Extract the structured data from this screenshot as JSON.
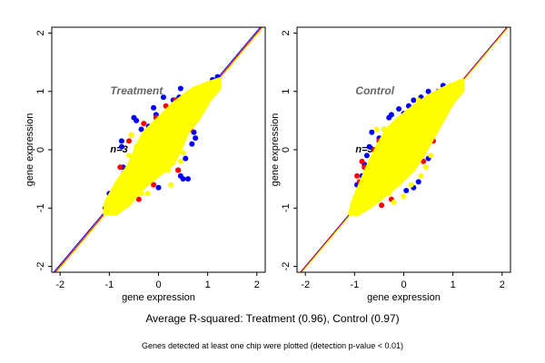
{
  "chart_data": [
    {
      "type": "scatter",
      "title": "Treatment",
      "annotation": "n=3",
      "xlabel": "gene expression",
      "ylabel": "gene expression",
      "xlim": [
        -2.17,
        2.17
      ],
      "ylim": [
        -2.1,
        2.1
      ],
      "xticks": [
        -2,
        -1,
        0,
        1,
        2
      ],
      "yticks": [
        -2,
        -1,
        0,
        1,
        2
      ],
      "grid": false,
      "reference_lines": [
        {
          "color": "#0000ff",
          "slope": 1,
          "intercept": 0.03
        },
        {
          "color": "#ff0000",
          "slope": 1,
          "intercept": 0.0
        },
        {
          "color": "#ffff00",
          "slope": 1,
          "intercept": -0.03
        }
      ],
      "series": [
        {
          "color": "#0000ff",
          "points": [
            [
              -0.5,
              0.55
            ],
            [
              -0.45,
              0.5
            ],
            [
              -0.1,
              0.72
            ],
            [
              -0.05,
              0.6
            ],
            [
              0.1,
              0.9
            ],
            [
              0.45,
              1.05
            ],
            [
              0.42,
              0.9
            ],
            [
              0.3,
              0.85
            ],
            [
              -0.2,
              0.4
            ],
            [
              -0.35,
              0.35
            ],
            [
              -0.75,
              0.15
            ],
            [
              -0.75,
              0.05
            ],
            [
              -0.72,
              -0.3
            ],
            [
              -0.7,
              -0.4
            ],
            [
              -0.8,
              -0.6
            ],
            [
              -1.0,
              -0.75
            ],
            [
              0.45,
              -0.45
            ],
            [
              0.5,
              -0.5
            ],
            [
              0.6,
              -0.5
            ],
            [
              0.4,
              -0.35
            ],
            [
              0.55,
              -0.15
            ],
            [
              0.75,
              0.2
            ],
            [
              0.72,
              0.3
            ],
            [
              0.68,
              0.1
            ],
            [
              0.0,
              -0.65
            ],
            [
              1.1,
              1.2
            ],
            [
              1.2,
              1.25
            ]
          ]
        },
        {
          "color": "#ff0000",
          "points": [
            [
              -0.4,
              -0.85
            ],
            [
              -0.8,
              -0.55
            ],
            [
              -0.78,
              -0.3
            ],
            [
              0.35,
              0.85
            ],
            [
              0.15,
              0.75
            ],
            [
              -0.05,
              0.55
            ],
            [
              -0.6,
              0.15
            ],
            [
              -0.55,
              0.25
            ],
            [
              -1.05,
              -0.95
            ],
            [
              -1.08,
              -1.0
            ],
            [
              0.4,
              -0.35
            ],
            [
              0.65,
              0.35
            ],
            [
              -0.1,
              -0.6
            ],
            [
              0.95,
              1.1
            ],
            [
              -0.3,
              0.45
            ]
          ]
        },
        {
          "color": "#ffff00",
          "points": [
            [
              -0.55,
              0.25
            ],
            [
              -0.35,
              -0.75
            ],
            [
              -0.22,
              -0.75
            ],
            [
              0.25,
              -0.6
            ],
            [
              0.5,
              -0.05
            ],
            [
              0.3,
              0.65
            ],
            [
              -0.45,
              0.05
            ],
            [
              0.45,
              -0.2
            ],
            [
              0.2,
              -0.35
            ],
            [
              -0.6,
              -0.1
            ]
          ],
          "core": [
            [
              -1.1,
              -1.1
            ],
            [
              -1.08,
              -0.9
            ],
            [
              -0.85,
              -0.55
            ],
            [
              -0.6,
              -0.25
            ],
            [
              -0.45,
              0.05
            ],
            [
              -0.3,
              0.3
            ],
            [
              0.0,
              0.55
            ],
            [
              0.3,
              0.8
            ],
            [
              0.7,
              1.05
            ],
            [
              1.0,
              1.15
            ],
            [
              1.25,
              1.22
            ],
            [
              1.25,
              1.05
            ],
            [
              1.05,
              0.85
            ],
            [
              0.8,
              0.5
            ],
            [
              0.6,
              0.3
            ],
            [
              0.45,
              0.0
            ],
            [
              0.3,
              -0.25
            ],
            [
              0.0,
              -0.45
            ],
            [
              -0.3,
              -0.65
            ],
            [
              -0.6,
              -0.95
            ],
            [
              -0.85,
              -1.1
            ]
          ]
        }
      ]
    },
    {
      "type": "scatter",
      "title": "Control",
      "annotation": "n=3",
      "xlabel": "gene expression",
      "ylabel": "gene expression",
      "xlim": [
        -2.17,
        2.17
      ],
      "ylim": [
        -2.1,
        2.1
      ],
      "xticks": [
        -2,
        -1,
        0,
        1,
        2
      ],
      "yticks": [
        -2,
        -1,
        0,
        1,
        2
      ],
      "grid": false,
      "reference_lines": [
        {
          "color": "#0000ff",
          "slope": 1,
          "intercept": 0.0
        },
        {
          "color": "#ff0000",
          "slope": 1,
          "intercept": -0.01
        },
        {
          "color": "#ffff00",
          "slope": 1,
          "intercept": -0.03
        }
      ],
      "series": [
        {
          "color": "#0000ff",
          "points": [
            [
              -0.3,
              0.55
            ],
            [
              -0.25,
              0.6
            ],
            [
              -0.1,
              0.7
            ],
            [
              0.0,
              0.62
            ],
            [
              0.1,
              0.75
            ],
            [
              0.2,
              0.85
            ],
            [
              0.35,
              0.9
            ],
            [
              0.5,
              1.0
            ],
            [
              -0.4,
              0.35
            ],
            [
              -0.5,
              0.2
            ],
            [
              -0.65,
              0.3
            ],
            [
              -0.7,
              0.05
            ],
            [
              -0.75,
              -0.1
            ],
            [
              -0.8,
              -0.25
            ],
            [
              -0.85,
              -0.45
            ],
            [
              -0.95,
              -0.6
            ],
            [
              -0.1,
              -0.45
            ],
            [
              0.2,
              -0.65
            ],
            [
              0.3,
              -0.55
            ],
            [
              0.05,
              -0.7
            ],
            [
              0.5,
              -0.15
            ],
            [
              -0.2,
              -0.55
            ],
            [
              0.8,
              1.1
            ],
            [
              0.7,
              1.0
            ]
          ]
        },
        {
          "color": "#ff0000",
          "points": [
            [
              -0.8,
              -0.3
            ],
            [
              -0.95,
              -0.45
            ],
            [
              -0.9,
              -0.55
            ],
            [
              -0.45,
              -0.95
            ],
            [
              -0.25,
              -0.85
            ],
            [
              0.05,
              0.55
            ],
            [
              0.25,
              0.75
            ],
            [
              -0.5,
              0.15
            ],
            [
              -0.6,
              0.0
            ],
            [
              0.4,
              -0.2
            ],
            [
              0.6,
              0.15
            ],
            [
              -0.15,
              0.45
            ],
            [
              -0.85,
              -0.2
            ]
          ]
        },
        {
          "color": "#ffff00",
          "points": [
            [
              -0.2,
              -0.9
            ],
            [
              -0.3,
              -0.75
            ],
            [
              0.0,
              -0.8
            ],
            [
              0.15,
              -0.6
            ],
            [
              0.35,
              -0.45
            ],
            [
              0.55,
              -0.1
            ],
            [
              -0.4,
              0.35
            ],
            [
              -0.55,
              0.35
            ],
            [
              0.3,
              0.85
            ],
            [
              0.45,
              -0.3
            ]
          ],
          "core": [
            [
              -1.1,
              -1.1
            ],
            [
              -1.05,
              -0.9
            ],
            [
              -0.9,
              -0.6
            ],
            [
              -0.75,
              -0.3
            ],
            [
              -0.55,
              0.05
            ],
            [
              -0.35,
              0.35
            ],
            [
              -0.1,
              0.55
            ],
            [
              0.2,
              0.75
            ],
            [
              0.55,
              0.95
            ],
            [
              0.9,
              1.1
            ],
            [
              1.2,
              1.2
            ],
            [
              1.2,
              1.0
            ],
            [
              1.0,
              0.8
            ],
            [
              0.8,
              0.5
            ],
            [
              0.6,
              0.2
            ],
            [
              0.4,
              -0.1
            ],
            [
              0.2,
              -0.35
            ],
            [
              -0.1,
              -0.6
            ],
            [
              -0.4,
              -0.8
            ],
            [
              -0.7,
              -1.0
            ],
            [
              -0.95,
              -1.12
            ]
          ]
        }
      ]
    }
  ],
  "captions": {
    "main": "Average R-squared: Treatment (0.96), Control (0.97)",
    "sub": "Genes detected at least one chip were plotted (detection p-value < 0.01)"
  }
}
